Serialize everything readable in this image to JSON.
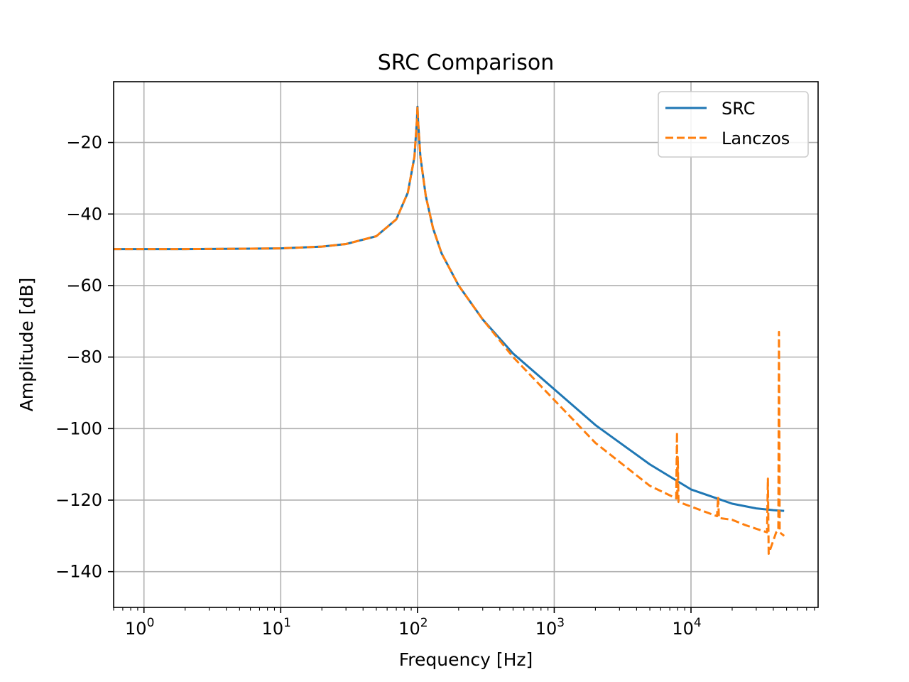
{
  "chart_data": {
    "type": "line",
    "title": "SRC Comparison",
    "xlabel": "Frequency [Hz]",
    "ylabel": "Amplitude [dB]",
    "xscale": "log",
    "xlim": [
      0.6,
      85000
    ],
    "ylim": [
      -150,
      -3
    ],
    "x_ticks": [
      {
        "value": 1,
        "base": "10",
        "exp": "0"
      },
      {
        "value": 10,
        "base": "10",
        "exp": "1"
      },
      {
        "value": 100,
        "base": "10",
        "exp": "2"
      },
      {
        "value": 1000,
        "base": "10",
        "exp": "3"
      },
      {
        "value": 10000,
        "base": "10",
        "exp": "4"
      }
    ],
    "y_ticks": [
      {
        "value": -20,
        "label": "−20"
      },
      {
        "value": -40,
        "label": "−40"
      },
      {
        "value": -60,
        "label": "−60"
      },
      {
        "value": -80,
        "label": "−80"
      },
      {
        "value": -100,
        "label": "−100"
      },
      {
        "value": -120,
        "label": "−120"
      },
      {
        "value": -140,
        "label": "−140"
      }
    ],
    "grid": true,
    "legend_position": "top-right",
    "series": [
      {
        "name": "SRC",
        "color": "#1f77b4",
        "dash": "solid",
        "x": [
          0.6,
          1,
          2,
          5,
          10,
          20,
          30,
          50,
          70,
          85,
          95,
          99,
          100,
          101,
          105,
          115,
          130,
          150,
          200,
          300,
          500,
          1000,
          2000,
          5000,
          10000,
          20000,
          30000,
          40000,
          48000
        ],
        "y": [
          -49.8,
          -49.8,
          -49.8,
          -49.7,
          -49.6,
          -49.1,
          -48.4,
          -46.2,
          -41.5,
          -34,
          -24,
          -14,
          -10,
          -14,
          -24,
          -35,
          -44,
          -51,
          -60,
          -69.5,
          -79,
          -89,
          -99,
          -110,
          -117,
          -121,
          -122.3,
          -122.8,
          -123
        ]
      },
      {
        "name": "Lanczos",
        "color": "#ff7f0e",
        "dash": "dashed",
        "x": [
          0.6,
          1,
          2,
          5,
          10,
          20,
          30,
          50,
          70,
          85,
          95,
          99,
          100,
          101,
          105,
          115,
          130,
          150,
          200,
          300,
          500,
          1000,
          2000,
          5000,
          7800,
          7900,
          7950,
          8000,
          8100,
          10000,
          15500,
          15800,
          16000,
          20000,
          25000,
          30000,
          36000,
          36500,
          37000,
          42000,
          43500,
          44000,
          44500,
          48000
        ],
        "y": [
          -49.8,
          -49.8,
          -49.8,
          -49.7,
          -49.6,
          -49.1,
          -48.4,
          -46.2,
          -41.5,
          -34,
          -24,
          -14,
          -10,
          -14,
          -24,
          -35,
          -44,
          -51,
          -60,
          -69.5,
          -80,
          -92,
          -104,
          -116,
          -119.5,
          -101,
          -120,
          -108,
          -120.5,
          -121.8,
          -124.5,
          -119,
          -125,
          -125.5,
          -127,
          -128,
          -129,
          -114,
          -135,
          -129,
          -128.5,
          -73,
          -129,
          -130
        ]
      }
    ]
  }
}
